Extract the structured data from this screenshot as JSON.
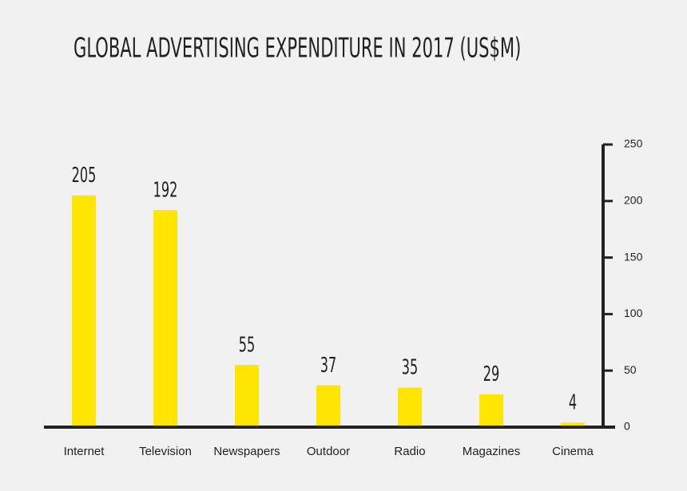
{
  "chart_data": {
    "type": "bar",
    "title": "GLOBAL ADVERTISING EXPENDITURE IN 2017 (US$M)",
    "categories": [
      "Internet",
      "Television",
      "Newspapers",
      "Outdoor",
      "Radio",
      "Magazines",
      "Cinema"
    ],
    "values": [
      205,
      192,
      55,
      37,
      35,
      29,
      4
    ],
    "color": "#ffe500",
    "ylim": [
      0,
      250
    ],
    "yticks": [
      0,
      50,
      100,
      150,
      200,
      250
    ],
    "grid": false
  }
}
